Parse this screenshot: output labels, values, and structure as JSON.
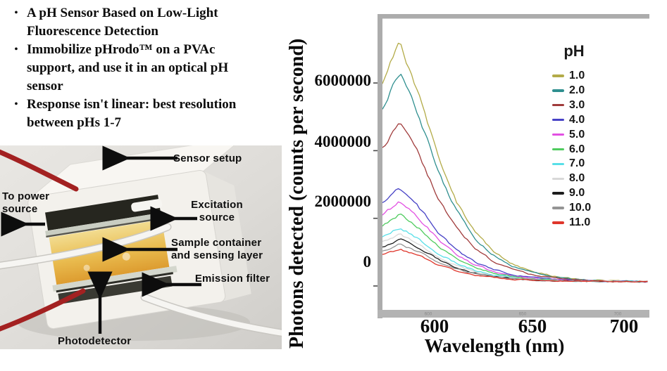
{
  "slide": {
    "bullets": [
      "A pH Sensor Based on Low-Light\nFluorescence Detection",
      "Immobilize pHrodo™ on a PVAc\nsupport, and use it in an optical pH\nsensor",
      "Response isn't linear: best resolution\nbetween pHs 1-7"
    ]
  },
  "photo": {
    "labels": {
      "sensor_setup": "Sensor setup",
      "to_power_source": "To power source",
      "excitation_source": "Excitation source",
      "sample_container": "Sample container and sensing layer",
      "emission_filter": "Emission filter",
      "photodetector": "Photodetector"
    }
  },
  "chart": {
    "y_axis_title": "Photons detected (counts per second)",
    "x_axis_title": "Wavelength (nm)",
    "y_tick_labels": [
      "6000000",
      "4000000",
      "2000000",
      "0"
    ],
    "x_tick_labels": [
      "600",
      "650",
      "700"
    ],
    "legend_title": "pH",
    "chart_data": {
      "type": "line",
      "title": "",
      "xlabel": "Wavelength (nm)",
      "ylabel": "Photons detected (counts per second)",
      "xlim": [
        576,
        717
      ],
      "ylim": [
        -900000,
        7900000
      ],
      "x_ticks": [
        600,
        650,
        700
      ],
      "y_ticks": [
        0,
        2000000,
        4000000,
        6000000
      ],
      "grid": false,
      "legend_position": "upper right",
      "peak_wavelength_nm": 585,
      "baseline_cps": 130000,
      "x_wavelengths_nm": [
        575,
        585,
        595,
        605,
        615,
        625,
        635,
        645,
        655,
        665,
        675,
        685,
        695,
        705,
        715
      ],
      "series": [
        {
          "name": "1.0",
          "color": "#b3ab48",
          "peak_cps": 7300000,
          "values": [
            5870000,
            7190000,
            5720000,
            3860000,
            2500000,
            1560000,
            990000,
            630000,
            430000,
            300000,
            220000,
            180000,
            160000,
            140000,
            130000
          ]
        },
        {
          "name": "2.0",
          "color": "#2f8f8f",
          "peak_cps": 6450000,
          "values": [
            5190000,
            6360000,
            5060000,
            3420000,
            2220000,
            1390000,
            890000,
            570000,
            400000,
            280000,
            210000,
            170000,
            150000,
            140000,
            130000
          ]
        },
        {
          "name": "3.0",
          "color": "#a03b3b",
          "peak_cps": 4950000,
          "values": [
            3990000,
            4880000,
            3890000,
            2640000,
            1720000,
            1090000,
            710000,
            470000,
            330000,
            250000,
            190000,
            160000,
            150000,
            130000,
            130000
          ]
        },
        {
          "name": "4.0",
          "color": "#4742c6",
          "peak_cps": 2950000,
          "values": [
            2390000,
            2910000,
            2330000,
            1600000,
            1060000,
            690000,
            470000,
            330000,
            250000,
            200000,
            170000,
            150000,
            140000,
            130000,
            130000
          ]
        },
        {
          "name": "5.0",
          "color": "#e24fe2",
          "peak_cps": 2550000,
          "values": [
            2070000,
            2510000,
            2020000,
            1390000,
            930000,
            610000,
            420000,
            300000,
            230000,
            190000,
            160000,
            150000,
            140000,
            130000,
            130000
          ]
        },
        {
          "name": "6.0",
          "color": "#4fcb5e",
          "peak_cps": 2150000,
          "values": [
            1750000,
            2120000,
            1710000,
            1180000,
            800000,
            530000,
            370000,
            270000,
            210000,
            180000,
            160000,
            140000,
            140000,
            130000,
            130000
          ]
        },
        {
          "name": "7.0",
          "color": "#58dfe8",
          "peak_cps": 1750000,
          "values": [
            1430000,
            1730000,
            1390000,
            970000,
            670000,
            450000,
            320000,
            240000,
            200000,
            170000,
            150000,
            140000,
            140000,
            130000,
            130000
          ]
        },
        {
          "name": "8.0",
          "color": "#d8d8d8",
          "peak_cps": 1550000,
          "values": [
            1270000,
            1530000,
            1240000,
            870000,
            600000,
            410000,
            300000,
            230000,
            190000,
            160000,
            150000,
            140000,
            140000,
            130000,
            130000
          ]
        },
        {
          "name": "9.0",
          "color": "#1c1c1c",
          "peak_cps": 1400000,
          "values": [
            1150000,
            1380000,
            1120000,
            790000,
            550000,
            380000,
            280000,
            220000,
            180000,
            160000,
            150000,
            140000,
            130000,
            130000,
            130000
          ]
        },
        {
          "name": "10.0",
          "color": "#949494",
          "peak_cps": 1250000,
          "values": [
            1030000,
            1230000,
            1000000,
            710000,
            500000,
            350000,
            260000,
            210000,
            180000,
            160000,
            150000,
            140000,
            130000,
            130000,
            130000
          ]
        },
        {
          "name": "11.0",
          "color": "#df362b",
          "peak_cps": 1100000,
          "values": [
            910000,
            1090000,
            890000,
            630000,
            450000,
            320000,
            250000,
            200000,
            170000,
            150000,
            140000,
            140000,
            130000,
            130000,
            130000
          ]
        }
      ]
    }
  },
  "colors": {
    "frame_gray": "#acacac",
    "text_black": "#0d0d0d"
  }
}
